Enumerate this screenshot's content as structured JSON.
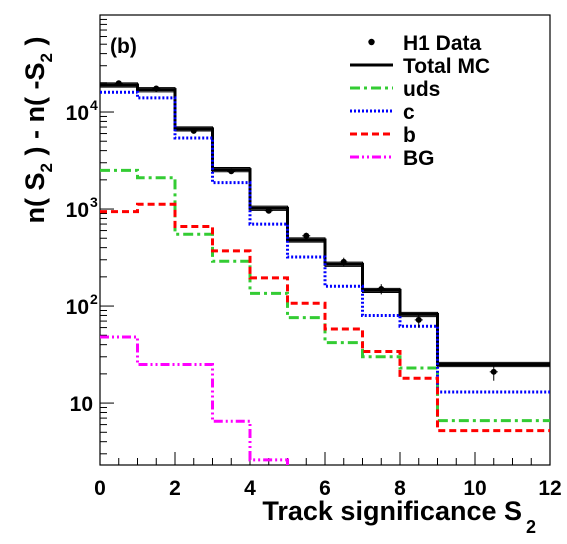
{
  "chart_data": {
    "type": "histogram",
    "panel_label": "(b)",
    "xlabel": "Track significance S",
    "xlabel_sub": "2",
    "ylabel_parts": [
      "n( S",
      "2",
      " ) - n( -S",
      "2",
      " )"
    ],
    "xlim": [
      0,
      12
    ],
    "ylim": [
      2.3,
      100000
    ],
    "yscale": "log",
    "x_ticks": [
      0,
      2,
      4,
      6,
      8,
      10,
      12
    ],
    "x_tick_labels": [
      "0",
      "2",
      "4",
      "6",
      "8",
      "10",
      "12"
    ],
    "y_tick_labels": [
      {
        "value": 10,
        "base": "10",
        "exp": ""
      },
      {
        "value": 100,
        "base": "10",
        "exp": "2"
      },
      {
        "value": 1000,
        "base": "10",
        "exp": "3"
      },
      {
        "value": 10000,
        "base": "10",
        "exp": "4"
      }
    ],
    "bin_edges": [
      0,
      1,
      2,
      3,
      4,
      5,
      6,
      7,
      8,
      9,
      12
    ],
    "data_points": {
      "name": "H1 Data",
      "x": [
        0.5,
        1.5,
        2.5,
        3.5,
        4.5,
        5.5,
        6.5,
        7.5,
        8.5,
        10.5
      ],
      "y": [
        19800,
        17500,
        6400,
        2450,
        960,
        530,
        285,
        150,
        72,
        21
      ],
      "err": [
        500,
        450,
        250,
        120,
        60,
        40,
        30,
        18,
        12,
        4
      ]
    },
    "series": [
      {
        "name": "Total MC",
        "style": "solid",
        "color": "#000000",
        "values": [
          19000,
          17000,
          6700,
          2550,
          1020,
          480,
          270,
          145,
          82,
          25
        ],
        "band": 0.05
      },
      {
        "name": "uds",
        "style": "dashdot",
        "color": "#33cc33",
        "values": [
          2500,
          2100,
          550,
          290,
          135,
          76,
          42,
          30,
          23,
          6.6
        ]
      },
      {
        "name": "c",
        "style": "dotted",
        "color": "#0000ff",
        "values": [
          16000,
          14000,
          5400,
          1870,
          700,
          320,
          160,
          80,
          62,
          13
        ]
      },
      {
        "name": "b",
        "style": "dashed",
        "color": "#ff0000",
        "values": [
          940,
          1120,
          660,
          370,
          195,
          107,
          58,
          34,
          18,
          5.2
        ]
      },
      {
        "name": "BG",
        "style": "dashdotdot",
        "color": "#ff00ff",
        "values": [
          48,
          25,
          25,
          6.5,
          2.6,
          null,
          null,
          null,
          null,
          null
        ]
      }
    ],
    "legend_position": "top-right"
  }
}
